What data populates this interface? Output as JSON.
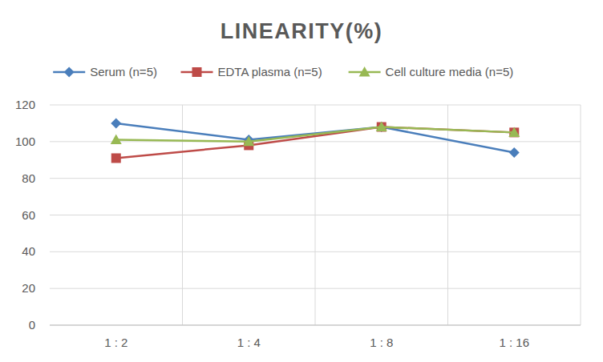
{
  "chart_data": {
    "type": "line",
    "title": "LINEARITY(%)",
    "categories": [
      "1:2",
      "1:4",
      "1:8",
      "1:16"
    ],
    "series": [
      {
        "name": "Serum (n=5)",
        "color": "#4a7ebb",
        "marker": "diamond",
        "values": [
          110,
          101,
          108,
          94
        ]
      },
      {
        "name": "EDTA plasma (n=5)",
        "color": "#be4b48",
        "marker": "square",
        "values": [
          91,
          98,
          108,
          105
        ]
      },
      {
        "name": "Cell culture media (n=5)",
        "color": "#98b954",
        "marker": "triangle",
        "values": [
          101,
          100,
          108,
          105
        ]
      }
    ],
    "ylim": [
      0,
      120
    ],
    "yticks": [
      0,
      20,
      40,
      60,
      80,
      100,
      120
    ],
    "grid": true,
    "legend": "top"
  }
}
